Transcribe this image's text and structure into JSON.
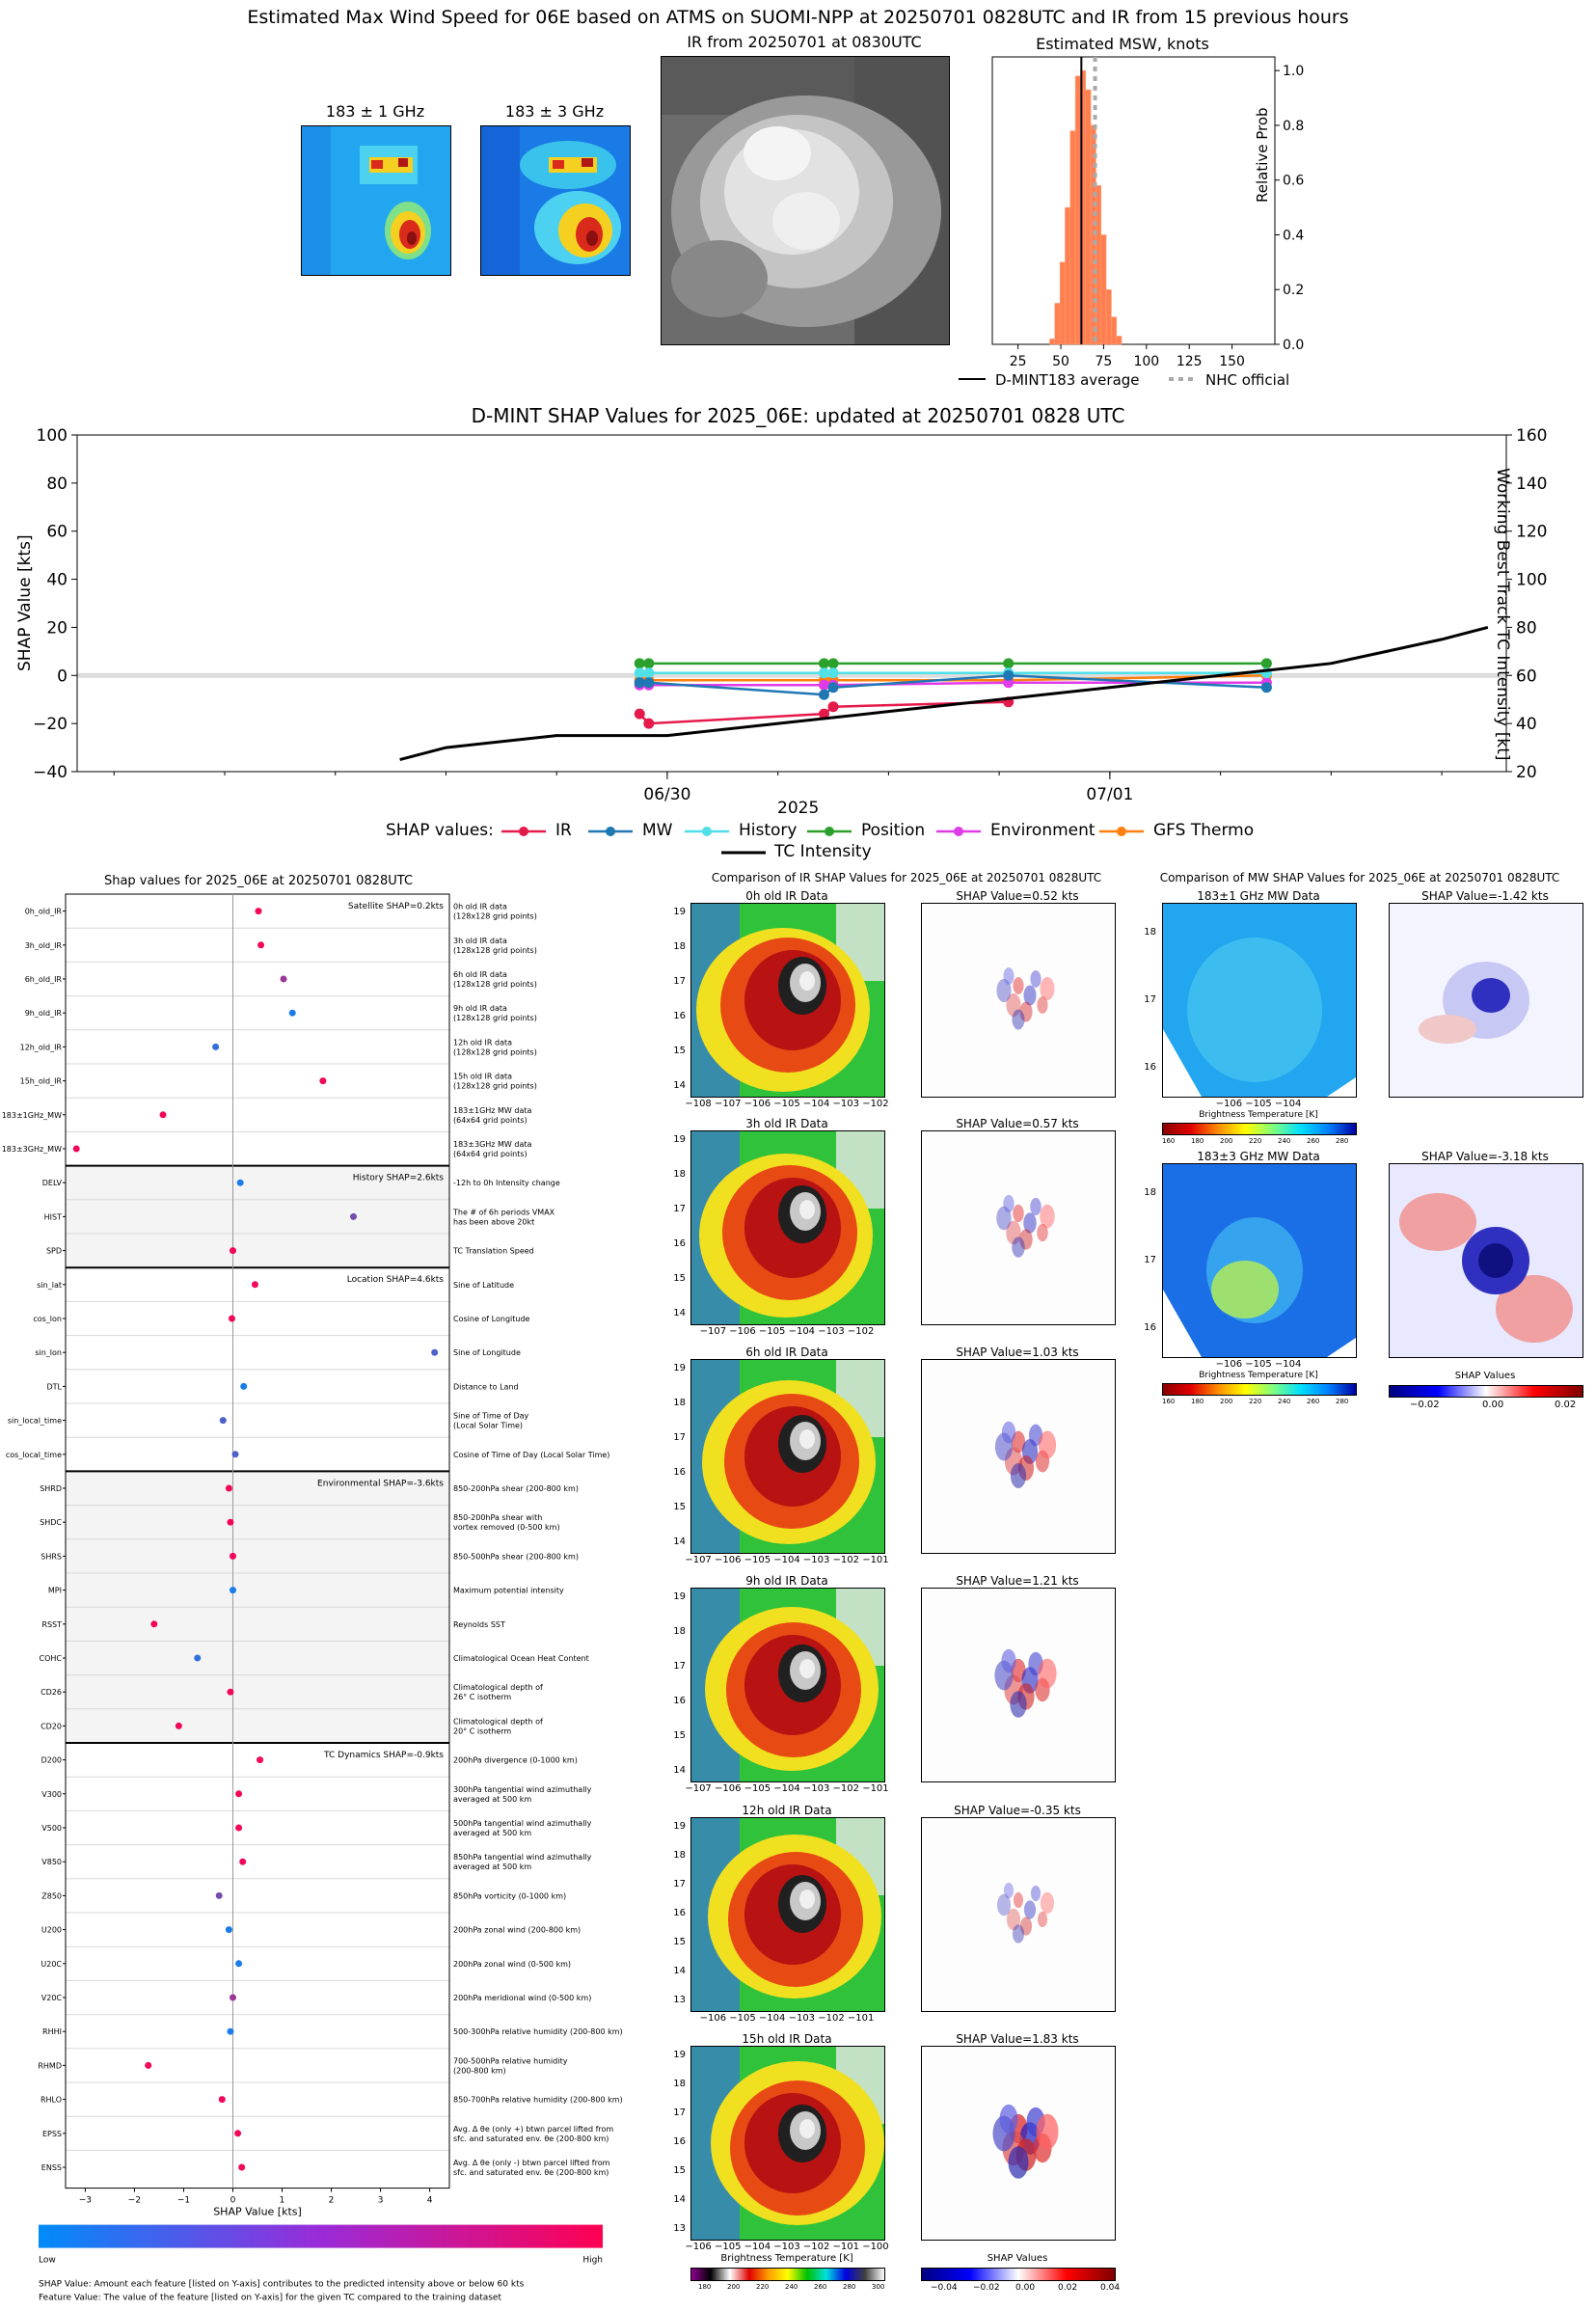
{
  "top": {
    "title": "Estimated Max Wind Speed for 06E based on ATMS on SUOMI-NPP at 20250701 0828UTC and IR from 15 previous hours",
    "mw1_title": "183 ± 1 GHz",
    "mw3_title": "183 ± 3 GHz",
    "ir_title": "IR from 20250701 at 0830UTC"
  },
  "colors": {
    "ir_line": "#e6194b",
    "mw_line": "#1f77b4",
    "history": "#4fe0e8",
    "position": "#2ca02c",
    "environment": "#e03be8",
    "gfs": "#ff7f0e",
    "hist_bar": "#ff7f50",
    "grid_band": "#dddddd"
  },
  "hist_chart": {
    "title": "Estimated MSW, knots",
    "ylabel": "Relative Prob",
    "xticks": [
      "25",
      "50",
      "75",
      "100",
      "125",
      "150"
    ],
    "yticks": [
      "0.0",
      "0.2",
      "0.4",
      "0.6",
      "0.8",
      "1.0"
    ],
    "legend": [
      "D-MINT183 average",
      "NHC official"
    ]
  },
  "shap_ts": {
    "title": "D-MINT SHAP Values for 2025_06E: updated at 20250701 0828 UTC",
    "ylabel_left": "SHAP Value [kts]",
    "ylabel_right": "Working Best Track TC Intensity [kt]",
    "yticks_left": [
      "100",
      "80",
      "60",
      "40",
      "20",
      "0",
      "−20",
      "−40"
    ],
    "yticks_right": [
      "160",
      "140",
      "120",
      "100",
      "80",
      "60",
      "40",
      "20"
    ],
    "xtick_labels": [
      "06/30",
      "07/01"
    ],
    "xlabel": "2025",
    "legend_title": "SHAP values:",
    "legend": [
      "IR",
      "MW",
      "History",
      "Position",
      "Environment",
      "GFS Thermo",
      "TC Intensity"
    ]
  },
  "shap_bar": {
    "title": "Shap values for 2025_06E at 20250701 0828UTC",
    "xlabel": "SHAP Value [kts]",
    "xticks": [
      "−3",
      "−2",
      "−1",
      "0",
      "1",
      "2",
      "3",
      "4"
    ],
    "groups": [
      {
        "label": "Satellite SHAP=0.2kts",
        "features": [
          {
            "name": "0h_old_IR",
            "desc": "0h old IR data\n(128x128 grid points)"
          },
          {
            "name": "3h_old_IR",
            "desc": "3h old IR data\n(128x128 grid points)"
          },
          {
            "name": "6h_old_IR",
            "desc": "6h old IR data\n(128x128 grid points)"
          },
          {
            "name": "9h_old_IR",
            "desc": "9h old IR data\n(128x128 grid points)"
          },
          {
            "name": "12h_old_IR",
            "desc": "12h old IR data\n(128x128 grid points)"
          },
          {
            "name": "15h_old_IR",
            "desc": "15h old IR data\n(128x128 grid points)"
          },
          {
            "name": "183±1GHz_MW",
            "desc": "183±1GHz MW data\n(64x64 grid points)"
          },
          {
            "name": "183±3GHz_MW",
            "desc": "183±3GHz MW data\n(64x64 grid points)"
          }
        ]
      },
      {
        "label": "History SHAP=2.6kts",
        "features": [
          {
            "name": "DELV",
            "desc": "-12h to 0h Intensity change"
          },
          {
            "name": "HIST",
            "desc": "The # of 6h periods VMAX\nhas been above 20kt"
          },
          {
            "name": "SPD",
            "desc": "TC Translation Speed"
          }
        ]
      },
      {
        "label": "Location SHAP=4.6kts",
        "features": [
          {
            "name": "sin_lat",
            "desc": "Sine of Latitude"
          },
          {
            "name": "cos_lon",
            "desc": "Cosine of Longitude"
          },
          {
            "name": "sin_lon",
            "desc": "Sine of Longitude"
          },
          {
            "name": "DTL",
            "desc": "Distance to Land"
          },
          {
            "name": "sin_local_time",
            "desc": "Sine of Time of Day\n(Local Solar Time)"
          },
          {
            "name": "cos_local_time",
            "desc": "Cosine of Time of Day (Local Solar Time)"
          }
        ]
      },
      {
        "label": "Environmental SHAP=-3.6kts",
        "features": [
          {
            "name": "SHRD",
            "desc": "850-200hPa shear (200-800 km)"
          },
          {
            "name": "SHDC",
            "desc": "850-200hPa shear with\nvortex removed (0-500 km)"
          },
          {
            "name": "SHRS",
            "desc": "850-500hPa shear (200-800 km)"
          },
          {
            "name": "MPI",
            "desc": "Maximum potential intensity"
          },
          {
            "name": "RSST",
            "desc": "Reynolds SST"
          },
          {
            "name": "COHC",
            "desc": "Climatological Ocean Heat Content"
          },
          {
            "name": "CD26",
            "desc": "Climatological depth of\n26° C isotherm"
          },
          {
            "name": "CD20",
            "desc": "Climatological depth of\n20° C isotherm"
          }
        ]
      },
      {
        "label": "TC Dynamics SHAP=-0.9kts",
        "features": [
          {
            "name": "D200",
            "desc": "200hPa divergence (0-1000 km)"
          },
          {
            "name": "V300",
            "desc": "300hPa tangential wind azimuthally\naveraged at 500 km"
          },
          {
            "name": "V500",
            "desc": "500hPa tangential wind azimuthally\naveraged at 500 km"
          },
          {
            "name": "V850",
            "desc": "850hPa tangential wind azimuthally\naveraged at 500 km"
          },
          {
            "name": "Z850",
            "desc": "850hPa vorticity (0-1000 km)"
          },
          {
            "name": "U200",
            "desc": "200hPa zonal wind (200-800 km)"
          },
          {
            "name": "U20C",
            "desc": "200hPa zonal wind (0-500 km)"
          },
          {
            "name": "V20C",
            "desc": "200hPa meridional wind (0-500 km)"
          },
          {
            "name": "RHHI",
            "desc": "500-300hPa relative humidity (200-800 km)"
          },
          {
            "name": "RHMD",
            "desc": "700-500hPa relative humidity\n(200-800 km)"
          },
          {
            "name": "RHLO",
            "desc": "850-700hPa relative humidity (200-800 km)"
          },
          {
            "name": "EPSS",
            "desc": "Avg. Δ θe (only +) btwn parcel lifted from\nsfc. and saturated env. θe (200-800 km)"
          },
          {
            "name": "ENSS",
            "desc": "Avg. Δ θe (only -) btwn parcel lifted from\nsfc. and saturated env. θe (200-800 km)"
          }
        ]
      }
    ],
    "colorbar_low": "Low",
    "colorbar_high": "High",
    "footnote1": "SHAP Value: Amount each feature [listed on Y-axis] contributes to the predicted intensity above or below 60 kts",
    "footnote2": "Feature Value: The value of the feature [listed on Y-axis] for the given TC compared to the training dataset"
  },
  "ir_compare": {
    "title": "Comparison of IR SHAP Values for 2025_06E at 20250701 0828UTC",
    "rows": [
      {
        "label": "0h old IR Data",
        "shap": "SHAP Value=0.52 kts",
        "yticks": [
          "19",
          "18",
          "17",
          "16",
          "15",
          "14"
        ],
        "xticks": "−108 −107 −106 −105 −104 −103 −102"
      },
      {
        "label": "3h old IR Data",
        "shap": "SHAP Value=0.57 kts",
        "yticks": [
          "19",
          "18",
          "17",
          "16",
          "15",
          "14"
        ],
        "xticks": "−107 −106 −105 −104 −103 −102"
      },
      {
        "label": "6h old IR Data",
        "shap": "SHAP Value=1.03 kts",
        "yticks": [
          "19",
          "18",
          "17",
          "16",
          "15",
          "14"
        ],
        "xticks": "−107 −106 −105 −104 −103 −102 −101"
      },
      {
        "label": "9h old IR Data",
        "shap": "SHAP Value=1.21 kts",
        "yticks": [
          "19",
          "18",
          "17",
          "16",
          "15",
          "14"
        ],
        "xticks": "−107 −106 −105 −104 −103 −102 −101"
      },
      {
        "label": "12h old IR Data",
        "shap": "SHAP Value=-0.35 kts",
        "yticks": [
          "19",
          "18",
          "17",
          "16",
          "15",
          "14",
          "13"
        ],
        "xticks": "−106 −105 −104 −103 −102 −101"
      },
      {
        "label": "15h old IR Data",
        "shap": "SHAP Value=1.83 kts",
        "yticks": [
          "19",
          "18",
          "17",
          "16",
          "15",
          "14",
          "13"
        ],
        "xticks": "−106 −105 −104 −103 −102 −101 −100"
      }
    ],
    "cbar_bt_label": "Brightness Temperature [K]",
    "cbar_bt_ticks": [
      "180",
      "200",
      "220",
      "240",
      "260",
      "280",
      "300"
    ],
    "cbar_shap_label": "SHAP Values",
    "cbar_shap_ticks": [
      "−0.04",
      "−0.02",
      "0.00",
      "0.02",
      "0.04"
    ]
  },
  "mw_compare": {
    "title": "Comparison of MW SHAP Values for 2025_06E at 20250701 0828UTC",
    "rows": [
      {
        "label": "183±1 GHz MW Data",
        "shap": "SHAP Value=-1.42 kts",
        "yticks": [
          "18",
          "17",
          "16"
        ],
        "xticks": "−106 −105 −104"
      },
      {
        "label": "183±3 GHz MW Data",
        "shap": "SHAP Value=-3.18 kts",
        "yticks": [
          "18",
          "17",
          "16"
        ],
        "xticks": "−106 −105 −104"
      }
    ],
    "cbar_bt_label": "Brightness Temperature [K]",
    "cbar_bt_ticks": [
      "160",
      "180",
      "200",
      "220",
      "240",
      "260",
      "280"
    ],
    "cbar_shap_label": "SHAP Values",
    "cbar_shap_ticks": [
      "−0.02",
      "0.00",
      "0.02"
    ]
  },
  "chart_data": [
    {
      "type": "bar",
      "title": "Estimated MSW, knots",
      "xlabel": "",
      "ylabel": "Relative Prob",
      "xlim": [
        10,
        175
      ],
      "ylim": [
        0,
        1.05
      ],
      "x": [
        45,
        48,
        51,
        54,
        57,
        60,
        63,
        66,
        69,
        72,
        75,
        78,
        81,
        84
      ],
      "values": [
        0.02,
        0.15,
        0.3,
        0.5,
        0.78,
        0.98,
        1.0,
        0.93,
        0.8,
        0.58,
        0.4,
        0.2,
        0.1,
        0.03
      ],
      "series": [
        {
          "name": "D-MINT183 average",
          "vline": 62
        },
        {
          "name": "NHC official",
          "vline": 70
        }
      ]
    },
    {
      "type": "line",
      "title": "D-MINT SHAP Values for 2025_06E: updated at 20250701 0828 UTC",
      "xlabel": "2025",
      "ylabel": "SHAP Value [kts]",
      "ylim": [
        -40,
        100
      ],
      "y2label": "Working Best Track TC Intensity [kt]",
      "y2lim": [
        20,
        160
      ],
      "xlim_hours": [
        -32,
        10.5
      ],
      "x_hours_note": "hours after 06/30 00UTC",
      "series": [
        {
          "name": "IR",
          "x": [
            -1.5,
            -1,
            8.5,
            9,
            18.5
          ],
          "values": [
            -16,
            -20,
            -16,
            -13,
            -11
          ]
        },
        {
          "name": "MW",
          "x": [
            -1.5,
            -1,
            8.5,
            9,
            18.5,
            32.5
          ],
          "values": [
            -3,
            -3,
            -8,
            -5,
            0,
            -5
          ]
        },
        {
          "name": "History",
          "x": [
            -1.5,
            -1,
            8.5,
            9,
            18.5,
            32.5
          ],
          "values": [
            1,
            1,
            1,
            1,
            1,
            1
          ]
        },
        {
          "name": "Position",
          "x": [
            -1.5,
            -1,
            8.5,
            9,
            18.5,
            32.5
          ],
          "values": [
            5,
            5,
            5,
            5,
            5,
            5
          ]
        },
        {
          "name": "Environment",
          "x": [
            -1.5,
            -1,
            8.5,
            9,
            18.5,
            32.5
          ],
          "values": [
            -4,
            -4,
            -4,
            -4,
            -3,
            -3
          ]
        },
        {
          "name": "GFS Thermo",
          "x": [
            -1.5,
            -1,
            8.5,
            9,
            18.5,
            32.5
          ],
          "values": [
            -2,
            -2,
            -2,
            -2,
            -2,
            0
          ]
        },
        {
          "name": "TC Intensity",
          "x": [
            -14.5,
            -12,
            -6,
            0,
            6,
            12,
            18,
            24,
            30,
            36,
            39,
            42,
            44.5
          ],
          "values": [
            25,
            30,
            35,
            35,
            40,
            45,
            50,
            55,
            60,
            65,
            70,
            75,
            80
          ]
        }
      ]
    },
    {
      "type": "scatter",
      "title": "Shap values for 2025_06E at 20250701 0828UTC",
      "xlabel": "SHAP Value [kts]",
      "xlim": [
        -3.4,
        4.4
      ],
      "categories": [
        "0h_old_IR",
        "3h_old_IR",
        "6h_old_IR",
        "9h_old_IR",
        "12h_old_IR",
        "15h_old_IR",
        "183±1GHz_MW",
        "183±3GHz_MW",
        "DELV",
        "HIST",
        "SPD",
        "sin_lat",
        "cos_lon",
        "sin_lon",
        "DTL",
        "sin_local_time",
        "cos_local_time",
        "SHRD",
        "SHDC",
        "SHRS",
        "MPI",
        "RSST",
        "COHC",
        "CD26",
        "CD20",
        "D200",
        "V300",
        "V500",
        "V850",
        "Z850",
        "U200",
        "U20C",
        "V20C",
        "RHHI",
        "RHMD",
        "RHLO",
        "EPSS",
        "ENSS"
      ],
      "values": [
        0.52,
        0.57,
        1.03,
        1.21,
        -0.35,
        1.83,
        -1.42,
        -3.18,
        0.15,
        2.45,
        0.0,
        0.45,
        -0.02,
        4.1,
        0.22,
        -0.2,
        0.05,
        -0.08,
        -0.05,
        0.0,
        0.0,
        -1.6,
        -0.72,
        -0.05,
        -1.1,
        0.55,
        0.12,
        0.12,
        0.2,
        -0.28,
        -0.08,
        0.12,
        0.0,
        -0.05,
        -1.72,
        -0.22,
        0.1,
        0.18
      ],
      "feature_values": [
        0.95,
        0.95,
        0.6,
        0.1,
        0.2,
        0.95,
        0.95,
        0.95,
        0.1,
        0.45,
        0.95,
        0.95,
        0.95,
        0.3,
        0.1,
        0.3,
        0.3,
        0.95,
        0.95,
        0.95,
        0.1,
        0.95,
        0.2,
        0.95,
        0.95,
        0.95,
        0.95,
        0.95,
        0.95,
        0.45,
        0.1,
        0.1,
        0.6,
        0.1,
        0.95,
        0.95,
        0.95,
        0.95
      ]
    }
  ]
}
